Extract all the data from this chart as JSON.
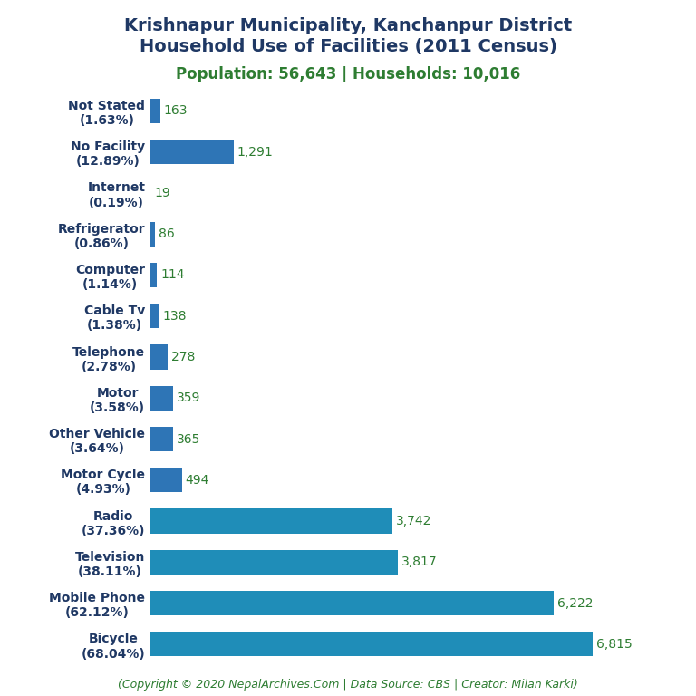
{
  "title_line1": "Krishnapur Municipality, Kanchanpur District",
  "title_line2": "Household Use of Facilities (2011 Census)",
  "subtitle": "Population: 56,643 | Households: 10,016",
  "footer": "(Copyright © 2020 NepalArchives.Com | Data Source: CBS | Creator: Milan Karki)",
  "categories": [
    "Not Stated\n(1.63%)",
    "No Facility\n(12.89%)",
    "Internet\n(0.19%)",
    "Refrigerator\n(0.86%)",
    "Computer\n(1.14%)",
    "Cable Tv\n(1.38%)",
    "Telephone\n(2.78%)",
    "Motor\n(3.58%)",
    "Other Vehicle\n(3.64%)",
    "Motor Cycle\n(4.93%)",
    "Radio\n(37.36%)",
    "Television\n(38.11%)",
    "Mobile Phone\n(62.12%)",
    "Bicycle\n(68.04%)"
  ],
  "values": [
    163,
    1291,
    19,
    86,
    114,
    138,
    278,
    359,
    365,
    494,
    3742,
    3817,
    6222,
    6815
  ],
  "value_labels": [
    "163",
    "1,291",
    "19",
    "86",
    "114",
    "138",
    "278",
    "359",
    "365",
    "494",
    "3,742",
    "3,817",
    "6,222",
    "6,815"
  ],
  "bar_colors": [
    "#2e75b6",
    "#2e75b6",
    "#2e75b6",
    "#2e75b6",
    "#2e75b6",
    "#2e75b6",
    "#2e75b6",
    "#2e75b6",
    "#2e75b6",
    "#2e75b6",
    "#1f8db8",
    "#1f8db8",
    "#1f8db8",
    "#1f8db8"
  ],
  "title_color": "#1f3864",
  "subtitle_color": "#2e7d32",
  "label_color": "#2e7d32",
  "footer_color": "#2e7d32",
  "yticklabel_color": "#1f3864",
  "background_color": "#ffffff",
  "xlim": [
    0,
    7500
  ],
  "title_fontsize": 14,
  "subtitle_fontsize": 12,
  "label_fontsize": 10,
  "ytick_fontsize": 10,
  "footer_fontsize": 9
}
